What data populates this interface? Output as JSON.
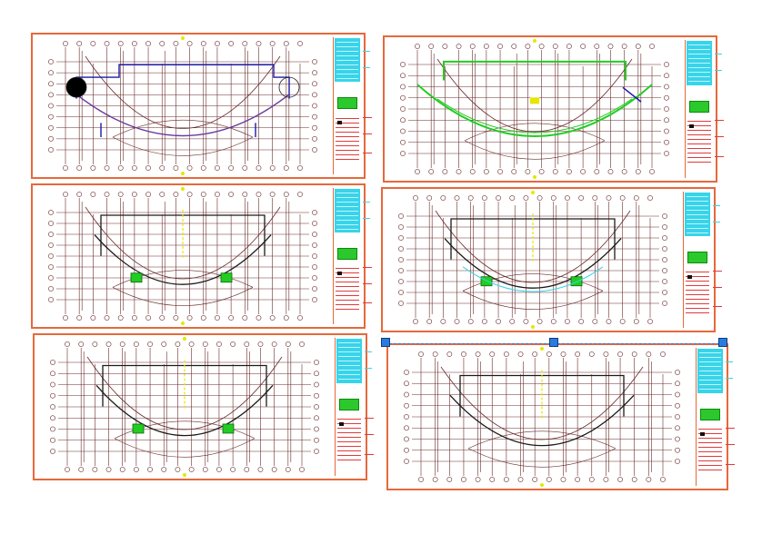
{
  "canvas": {
    "background": "#ffffff"
  },
  "colors": {
    "sheet_border": "#e8683a",
    "grid_line": "#6a2b2b",
    "plan_blue": "#1a1aa8",
    "plan_purple": "#6a3a9a",
    "plan_green": "#22cc22",
    "plan_yellow": "#e6e600",
    "plan_cyan": "#37d4ea",
    "titleblock_red": "#e23a3a",
    "selection_handle": "#2a7be0"
  },
  "sheets": [
    {
      "name": "floor-plan-sheet-1",
      "style": "blue-outline"
    },
    {
      "name": "floor-plan-sheet-2",
      "style": "green-corridor"
    },
    {
      "name": "floor-plan-sheet-3",
      "style": "black-outline-green-stairs"
    },
    {
      "name": "floor-plan-sheet-4",
      "style": "black-outline-cyan"
    },
    {
      "name": "floor-plan-sheet-5",
      "style": "black-outline-green-stairs"
    },
    {
      "name": "floor-plan-sheet-6",
      "style": "black-outline-selected"
    }
  ],
  "selection": {
    "active_sheet": "floor-plan-sheet-6",
    "handle_icons": [
      "grip-handle-icon",
      "grip-handle-icon",
      "grip-handle-icon"
    ]
  }
}
